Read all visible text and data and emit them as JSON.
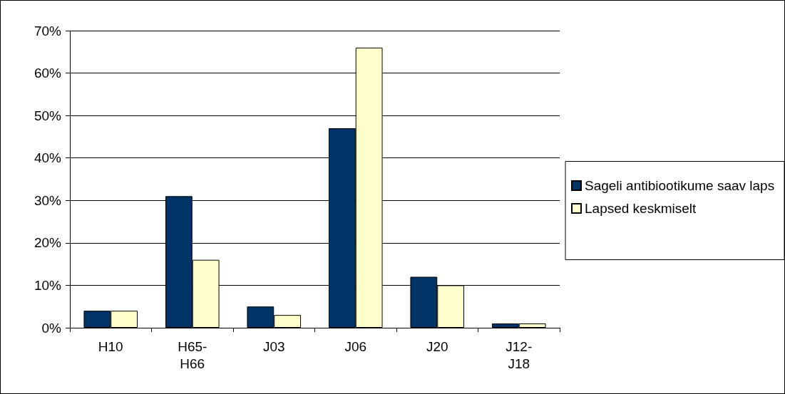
{
  "chart_data": {
    "type": "bar",
    "categories": [
      "H10",
      "H65-H66",
      "J03",
      "J06",
      "J20",
      "J12-J18"
    ],
    "series": [
      {
        "name": "Sageli antibiootikume saav laps",
        "color": "#003366",
        "values": [
          4,
          31,
          5,
          47,
          12,
          1
        ]
      },
      {
        "name": "Lapsed keskmiselt",
        "color": "#ffffcc",
        "values": [
          4,
          16,
          3,
          66,
          10,
          1
        ]
      }
    ],
    "ylim": [
      0,
      70
    ],
    "yticks": [
      {
        "value": 0,
        "label": "0%"
      },
      {
        "value": 10,
        "label": "10%"
      },
      {
        "value": 20,
        "label": "20%"
      },
      {
        "value": 30,
        "label": "30%"
      },
      {
        "value": 40,
        "label": "40%"
      },
      {
        "value": 50,
        "label": "50%"
      },
      {
        "value": 60,
        "label": "60%"
      },
      {
        "value": 70,
        "label": "70%"
      }
    ],
    "grid": "y",
    "legend": "right"
  }
}
